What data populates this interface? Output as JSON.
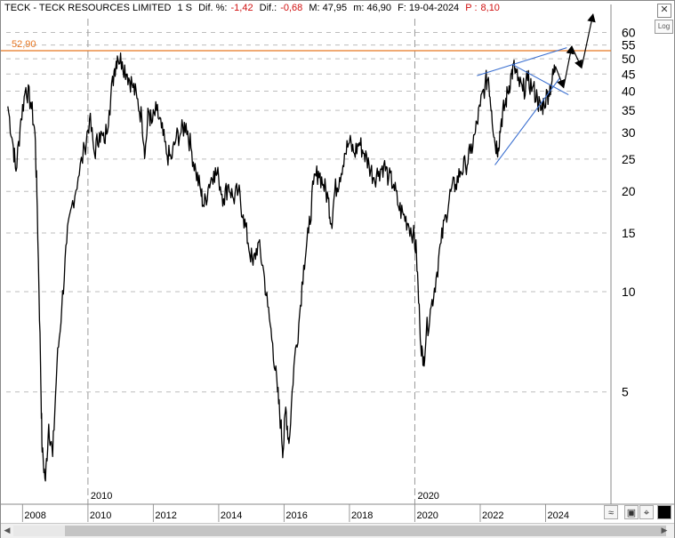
{
  "header": {
    "symbol": "TECK - TECK RESOURCES LIMITED",
    "period": "1 S",
    "dif_pct_label": "Dif. %:",
    "dif_pct_value": "-1,42",
    "dif_label": "Dif.:",
    "dif_value": "-0,68",
    "max_label": "M: 47,95",
    "min_label": "m: 46,90",
    "date_label": "F: 19-04-2024",
    "p_label": "P :",
    "p_value": "8,10"
  },
  "controls": {
    "close": "✕",
    "log": "Log"
  },
  "colors": {
    "price": "#000000",
    "resistance": "#e87722",
    "trendline": "#3a6fd0",
    "grid": "#bdbdbd",
    "year_divider": "#9a9a9a"
  },
  "chart_data": {
    "type": "line",
    "scale": "log",
    "ylim": [
      2.3,
      66
    ],
    "xlim": [
      2007.5,
      2026.0
    ],
    "y_ticks": [
      "5",
      "10",
      "15",
      "20",
      "25",
      "30",
      "35",
      "40",
      "45",
      "50",
      "55",
      "60"
    ],
    "x_ticks": [
      "2008",
      "2010",
      "2012",
      "2014",
      "2016",
      "2018",
      "2020",
      "2022",
      "2024"
    ],
    "year_dividers": [
      "2010",
      "2020"
    ],
    "resistance": {
      "label": "52,90",
      "value": 52.9
    },
    "series": [
      {
        "points": [
          [
            2007.55,
            36
          ],
          [
            2007.7,
            28
          ],
          [
            2007.8,
            23
          ],
          [
            2007.95,
            33
          ],
          [
            2008.1,
            41
          ],
          [
            2008.25,
            37
          ],
          [
            2008.38,
            30
          ],
          [
            2008.45,
            18
          ],
          [
            2008.55,
            6
          ],
          [
            2008.6,
            3.3
          ],
          [
            2008.7,
            2.7
          ],
          [
            2008.8,
            4
          ],
          [
            2008.92,
            3.2
          ],
          [
            2009.05,
            6
          ],
          [
            2009.2,
            9
          ],
          [
            2009.35,
            14
          ],
          [
            2009.5,
            18
          ],
          [
            2009.7,
            22
          ],
          [
            2009.9,
            27
          ],
          [
            2010.05,
            33
          ],
          [
            2010.2,
            26
          ],
          [
            2010.35,
            30
          ],
          [
            2010.5,
            28
          ],
          [
            2010.65,
            35
          ],
          [
            2010.8,
            46
          ],
          [
            2010.9,
            51
          ],
          [
            2011.05,
            49
          ],
          [
            2011.2,
            45
          ],
          [
            2011.35,
            42
          ],
          [
            2011.5,
            38
          ],
          [
            2011.65,
            33
          ],
          [
            2011.75,
            26
          ],
          [
            2011.85,
            35
          ],
          [
            2011.95,
            32
          ],
          [
            2012.1,
            35
          ],
          [
            2012.25,
            31
          ],
          [
            2012.4,
            26
          ],
          [
            2012.55,
            25
          ],
          [
            2012.7,
            29
          ],
          [
            2012.85,
            30
          ],
          [
            2013.0,
            32
          ],
          [
            2013.15,
            27
          ],
          [
            2013.3,
            23
          ],
          [
            2013.45,
            20
          ],
          [
            2013.55,
            18
          ],
          [
            2013.7,
            21
          ],
          [
            2013.85,
            23
          ],
          [
            2014.0,
            22
          ],
          [
            2014.15,
            19
          ],
          [
            2014.3,
            21
          ],
          [
            2014.45,
            19
          ],
          [
            2014.6,
            20
          ],
          [
            2014.75,
            17
          ],
          [
            2014.9,
            14
          ],
          [
            2015.05,
            12
          ],
          [
            2015.2,
            14
          ],
          [
            2015.35,
            12
          ],
          [
            2015.5,
            9
          ],
          [
            2015.65,
            7
          ],
          [
            2015.8,
            5
          ],
          [
            2015.9,
            4
          ],
          [
            2015.97,
            3.3
          ],
          [
            2016.05,
            4.5
          ],
          [
            2016.15,
            3.5
          ],
          [
            2016.3,
            6
          ],
          [
            2016.45,
            8
          ],
          [
            2016.6,
            12
          ],
          [
            2016.75,
            15
          ],
          [
            2016.9,
            21
          ],
          [
            2017.05,
            23
          ],
          [
            2017.2,
            21
          ],
          [
            2017.35,
            19
          ],
          [
            2017.45,
            16
          ],
          [
            2017.55,
            20
          ],
          [
            2017.7,
            22
          ],
          [
            2017.85,
            26
          ],
          [
            2018.0,
            28
          ],
          [
            2018.15,
            26
          ],
          [
            2018.3,
            28
          ],
          [
            2018.45,
            26
          ],
          [
            2018.6,
            24
          ],
          [
            2018.75,
            22
          ],
          [
            2018.9,
            23
          ],
          [
            2019.05,
            24
          ],
          [
            2019.2,
            22
          ],
          [
            2019.35,
            21
          ],
          [
            2019.5,
            18
          ],
          [
            2019.65,
            17
          ],
          [
            2019.8,
            16
          ],
          [
            2019.95,
            15
          ],
          [
            2020.05,
            13
          ],
          [
            2020.15,
            8
          ],
          [
            2020.25,
            6
          ],
          [
            2020.35,
            7.5
          ],
          [
            2020.5,
            9
          ],
          [
            2020.65,
            11
          ],
          [
            2020.8,
            14
          ],
          [
            2020.95,
            17
          ],
          [
            2021.1,
            20
          ],
          [
            2021.25,
            21
          ],
          [
            2021.4,
            23
          ],
          [
            2021.55,
            24
          ],
          [
            2021.7,
            26
          ],
          [
            2021.85,
            30
          ],
          [
            2022.0,
            36
          ],
          [
            2022.15,
            42
          ],
          [
            2022.25,
            44
          ],
          [
            2022.35,
            35
          ],
          [
            2022.45,
            28
          ],
          [
            2022.55,
            27
          ],
          [
            2022.65,
            33
          ],
          [
            2022.75,
            36
          ],
          [
            2022.85,
            40
          ],
          [
            2022.95,
            45
          ],
          [
            2023.05,
            47
          ],
          [
            2023.15,
            43
          ],
          [
            2023.3,
            40
          ],
          [
            2023.45,
            43
          ],
          [
            2023.6,
            41
          ],
          [
            2023.75,
            38
          ],
          [
            2023.85,
            35
          ],
          [
            2023.95,
            37
          ],
          [
            2024.1,
            40
          ],
          [
            2024.2,
            43
          ],
          [
            2024.3,
            47.5
          ]
        ]
      }
    ],
    "triangle_lines": [
      [
        [
          2021.9,
          44.5
        ],
        [
          2024.65,
          54
        ]
      ],
      [
        [
          2022.45,
          24
        ],
        [
          2024.45,
          44
        ]
      ],
      [
        [
          2023.0,
          48
        ],
        [
          2024.7,
          39
        ]
      ]
    ],
    "projection": [
      [
        2024.3,
        47.5
      ],
      [
        2024.55,
        41
      ],
      [
        2024.8,
        54.5
      ],
      [
        2025.1,
        47
      ],
      [
        2025.45,
        68
      ]
    ]
  }
}
